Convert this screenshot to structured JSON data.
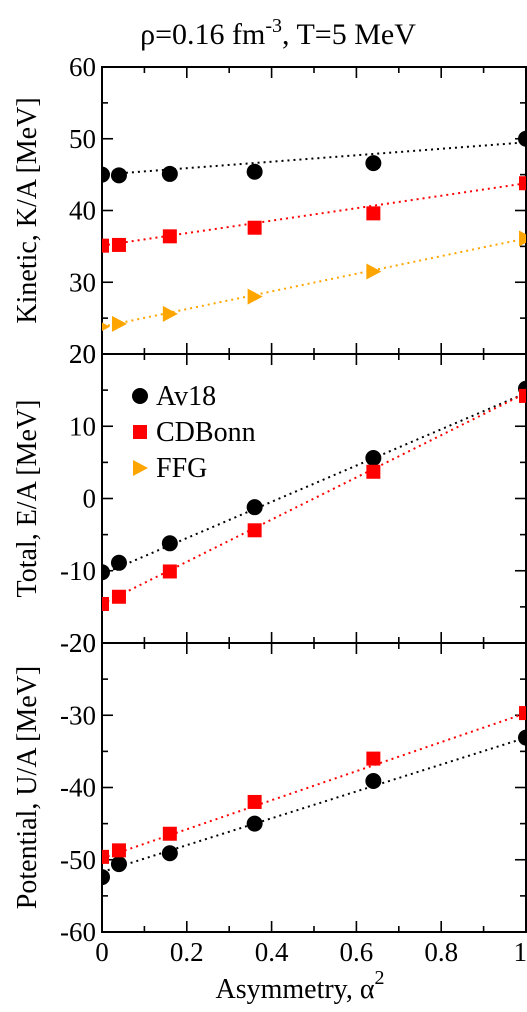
{
  "title": {
    "main": "ρ=0.16 fm",
    "superscript": "-3",
    "suffix": ", T=5 MeV"
  },
  "legend": {
    "av18": "Av18",
    "cdbonn": "CDBonn",
    "ffg": "FFG",
    "placement": "upper-left of middle panel"
  },
  "colors": {
    "av18": "#000000",
    "cdbonn": "#ff0000",
    "ffg": "#ffa500"
  },
  "chart_data": [
    {
      "type": "scatter",
      "panel": "top",
      "ylabel": "Kinetic, K/A [MeV]",
      "xlabel": "",
      "xlim": [
        0,
        1
      ],
      "ylim": [
        20,
        60
      ],
      "yticks": [
        20,
        30,
        40,
        50,
        60
      ],
      "ytick_labels": [
        "20",
        "30",
        "40",
        "50",
        "60"
      ],
      "grid": false,
      "series": [
        {
          "name": "Av18",
          "marker": "circle",
          "x": [
            0,
            0.04,
            0.16,
            0.36,
            0.64,
            1.0
          ],
          "y": [
            45.0,
            44.9,
            45.1,
            45.4,
            46.6,
            50.0
          ],
          "fit": [
            45.0,
            49.5
          ]
        },
        {
          "name": "CDBonn",
          "marker": "square",
          "x": [
            0,
            0.04,
            0.16,
            0.36,
            0.64,
            1.0
          ],
          "y": [
            35.1,
            35.2,
            36.4,
            37.6,
            39.6,
            43.8
          ],
          "fit": [
            35.1,
            43.8
          ]
        },
        {
          "name": "FFG",
          "marker": "triangle-right",
          "x": [
            0,
            0.04,
            0.16,
            0.36,
            0.64,
            1.0
          ],
          "y": [
            23.8,
            24.2,
            25.6,
            28.0,
            31.5,
            36.1
          ],
          "fit": [
            23.8,
            36.1
          ]
        }
      ]
    },
    {
      "type": "scatter",
      "panel": "middle",
      "ylabel": "Total, E/A [MeV]",
      "xlabel": "",
      "xlim": [
        0,
        1
      ],
      "ylim": [
        -20,
        20
      ],
      "yticks": [
        -20,
        -10,
        0,
        10,
        20
      ],
      "ytick_labels": [
        "-20",
        "-10",
        "0",
        "10",
        "20"
      ],
      "grid": false,
      "series": [
        {
          "name": "Av18",
          "marker": "circle",
          "x": [
            0,
            0.04,
            0.16,
            0.36,
            0.64,
            1.0
          ],
          "y": [
            -10.2,
            -8.9,
            -6.2,
            -1.2,
            5.6,
            15.2
          ],
          "fit": [
            -10.5,
            14.6
          ]
        },
        {
          "name": "CDBonn",
          "marker": "square",
          "x": [
            0,
            0.04,
            0.16,
            0.36,
            0.64,
            1.0
          ],
          "y": [
            -14.6,
            -13.6,
            -10.1,
            -4.4,
            3.7,
            14.2
          ],
          "fit": [
            -14.6,
            14.6
          ]
        }
      ]
    },
    {
      "type": "scatter",
      "panel": "bottom",
      "ylabel": "Potential, U/A [MeV]",
      "xlabel": "Asymmetry, α",
      "xlabel_superscript": "2",
      "xlim": [
        0,
        1
      ],
      "ylim": [
        -60,
        -20
      ],
      "xticks": [
        0,
        0.2,
        0.4,
        0.6,
        0.8,
        1
      ],
      "xtick_labels": [
        "0",
        "0.2",
        "0.4",
        "0.6",
        "0.8",
        "1"
      ],
      "yticks": [
        -60,
        -50,
        -40,
        -30,
        -20
      ],
      "ytick_labels": [
        "-60",
        "-50",
        "-40",
        "-30",
        "-20"
      ],
      "grid": false,
      "series": [
        {
          "name": "Av18",
          "marker": "circle",
          "x": [
            0,
            0.04,
            0.16,
            0.36,
            0.64,
            1.0
          ],
          "y": [
            -52.4,
            -50.6,
            -49.1,
            -45.0,
            -39.1,
            -33.1
          ],
          "fit": [
            -51.7,
            -33.1
          ]
        },
        {
          "name": "CDBonn",
          "marker": "square",
          "x": [
            0,
            0.04,
            0.16,
            0.36,
            0.64,
            1.0
          ],
          "y": [
            -49.6,
            -48.7,
            -46.4,
            -42.0,
            -36.0,
            -29.7
          ],
          "fit": [
            -49.8,
            -29.7
          ]
        }
      ]
    }
  ]
}
